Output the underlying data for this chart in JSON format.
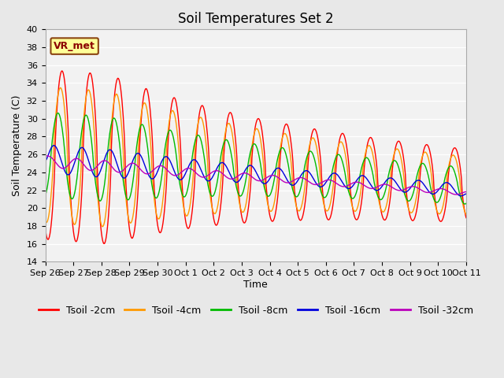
{
  "title": "Soil Temperatures Set 2",
  "xlabel": "Time",
  "ylabel": "Soil Temperature (C)",
  "ylim": [
    14,
    40
  ],
  "yticks": [
    14,
    16,
    18,
    20,
    22,
    24,
    26,
    28,
    30,
    32,
    34,
    36,
    38,
    40
  ],
  "xtick_labels": [
    "Sep 26",
    "Sep 27",
    "Sep 28",
    "Sep 29",
    "Sep 30",
    "Oct 1",
    "Oct 2",
    "Oct 3",
    "Oct 4",
    "Oct 5",
    "Oct 6",
    "Oct 7",
    "Oct 8",
    "Oct 9",
    "Oct 10",
    "Oct 11"
  ],
  "annotation_text": "VR_met",
  "line_colors": [
    "#ff0000",
    "#ff9900",
    "#00bb00",
    "#0000dd",
    "#bb00bb"
  ],
  "line_labels": [
    "Tsoil -2cm",
    "Tsoil -4cm",
    "Tsoil -8cm",
    "Tsoil -16cm",
    "Tsoil -32cm"
  ],
  "background_color": "#e8e8e8",
  "plot_bg_color": "#f2f2f2",
  "title_fontsize": 12,
  "axis_fontsize": 9,
  "tick_fontsize": 8,
  "legend_fontsize": 9
}
